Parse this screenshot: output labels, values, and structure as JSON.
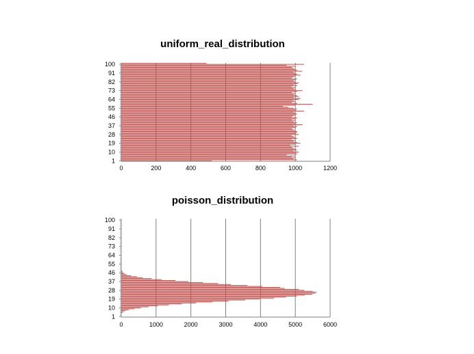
{
  "chart_data": [
    {
      "type": "bar",
      "orientation": "horizontal",
      "title": "uniform_real_distribution",
      "xlabel": "",
      "ylabel": "",
      "xlim": [
        0,
        1200
      ],
      "x_ticks": [
        "0",
        "200",
        "400",
        "600",
        "800",
        "1000",
        "1200"
      ],
      "y_tick_labels": [
        "1",
        "10",
        "19",
        "28",
        "37",
        "46",
        "55",
        "64",
        "73",
        "82",
        "91",
        "100"
      ],
      "grid": "vertical",
      "bar_color": "#c0504d",
      "categories": [
        1,
        2,
        3,
        4,
        5,
        6,
        7,
        8,
        9,
        10,
        11,
        12,
        13,
        14,
        15,
        16,
        17,
        18,
        19,
        20,
        21,
        22,
        23,
        24,
        25,
        26,
        27,
        28,
        29,
        30,
        31,
        32,
        33,
        34,
        35,
        36,
        37,
        38,
        39,
        40,
        41,
        42,
        43,
        44,
        45,
        46,
        47,
        48,
        49,
        50,
        51,
        52,
        53,
        54,
        55,
        56,
        57,
        58,
        59,
        60,
        61,
        62,
        63,
        64,
        65,
        66,
        67,
        68,
        69,
        70,
        71,
        72,
        73,
        74,
        75,
        76,
        77,
        78,
        79,
        80,
        81,
        82,
        83,
        84,
        85,
        86,
        87,
        88,
        89,
        90,
        91,
        92,
        93,
        94,
        95,
        96,
        97,
        98,
        99,
        100,
        101
      ],
      "values": [
        520,
        1010,
        990,
        1000,
        980,
        1000,
        950,
        1010,
        1000,
        1020,
        990,
        1010,
        1000,
        990,
        980,
        1020,
        970,
        1000,
        1030,
        1010,
        990,
        1000,
        980,
        1010,
        1000,
        990,
        980,
        1020,
        1000,
        1010,
        1010,
        1000,
        990,
        980,
        1000,
        1010,
        990,
        1040,
        1000,
        1010,
        990,
        1000,
        980,
        1000,
        1010,
        980,
        990,
        1000,
        1010,
        1000,
        990,
        1050,
        1000,
        1010,
        990,
        960,
        930,
        1000,
        1100,
        1010,
        980,
        1000,
        990,
        1020,
        1030,
        990,
        1020,
        1010,
        990,
        1000,
        980,
        1010,
        1040,
        1000,
        990,
        1000,
        980,
        1010,
        990,
        1010,
        1020,
        1000,
        990,
        1000,
        1010,
        980,
        990,
        1000,
        1030,
        1010,
        1000,
        990,
        1040,
        1010,
        1000,
        990,
        980,
        1000,
        950,
        1050,
        490
      ]
    },
    {
      "type": "bar",
      "orientation": "horizontal",
      "title": "poisson_distribution",
      "xlabel": "",
      "ylabel": "",
      "xlim": [
        0,
        6000
      ],
      "x_ticks": [
        "0",
        "1000",
        "2000",
        "3000",
        "4000",
        "5000",
        "6000"
      ],
      "y_tick_labels": [
        "1",
        "10",
        "19",
        "28",
        "37",
        "46",
        "55",
        "64",
        "73",
        "82",
        "91",
        "100"
      ],
      "grid": "vertical",
      "bar_color": "#c0504d",
      "categories": [
        1,
        2,
        3,
        4,
        5,
        6,
        7,
        8,
        9,
        10,
        11,
        12,
        13,
        14,
        15,
        16,
        17,
        18,
        19,
        20,
        21,
        22,
        23,
        24,
        25,
        26,
        27,
        28,
        29,
        30,
        31,
        32,
        33,
        34,
        35,
        36,
        37,
        38,
        39,
        40,
        41,
        42,
        43,
        44,
        45,
        46,
        47,
        48,
        49,
        50,
        51,
        52,
        53,
        54,
        55,
        56,
        57,
        58,
        59,
        60,
        61,
        62,
        63,
        64,
        65,
        66,
        67,
        68,
        69,
        70,
        71,
        72,
        73,
        74,
        75,
        76,
        77,
        78,
        79,
        80,
        81,
        82,
        83,
        84,
        85,
        86,
        87,
        88,
        89,
        90,
        91,
        92,
        93,
        94,
        95,
        96,
        97,
        98,
        99,
        100,
        101
      ],
      "values": [
        0,
        0,
        0,
        10,
        30,
        60,
        120,
        220,
        380,
        560,
        790,
        1050,
        1370,
        1740,
        2150,
        2620,
        3080,
        3560,
        3980,
        4390,
        4730,
        5040,
        5270,
        5480,
        5570,
        5610,
        5500,
        5260,
        5100,
        4690,
        4560,
        4050,
        3620,
        3150,
        2780,
        2350,
        1930,
        1560,
        1160,
        870,
        620,
        450,
        280,
        160,
        100,
        60,
        40,
        20,
        10,
        5,
        3,
        2,
        1,
        0,
        0,
        0,
        0,
        0,
        0,
        0,
        0,
        0,
        0,
        0,
        0,
        0,
        0,
        0,
        0,
        0,
        0,
        0,
        0,
        0,
        0,
        0,
        0,
        0,
        0,
        0,
        0,
        0,
        0,
        0,
        0,
        0,
        0,
        0,
        0,
        0,
        0,
        0,
        0,
        0,
        0,
        0,
        0,
        0,
        0,
        0,
        0
      ]
    }
  ]
}
